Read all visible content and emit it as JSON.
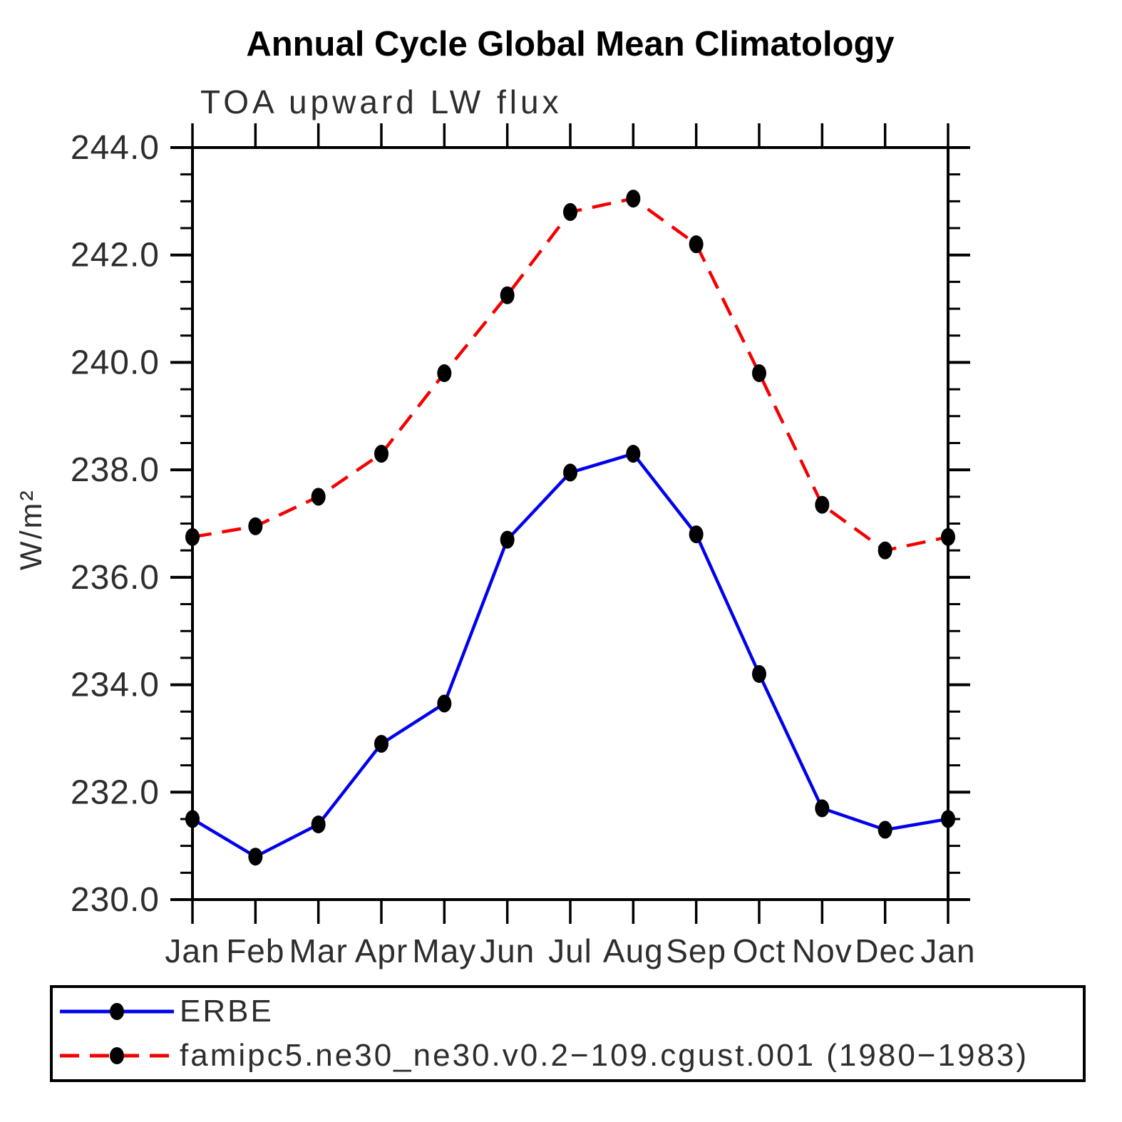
{
  "chart_data": {
    "type": "line",
    "title": "Annual Cycle Global Mean Climatology",
    "subtitle": "TOA upward LW flux",
    "ylabel": "W/m²",
    "xlabel": "",
    "categories": [
      "Jan",
      "Feb",
      "Mar",
      "Apr",
      "May",
      "Jun",
      "Jul",
      "Aug",
      "Sep",
      "Oct",
      "Nov",
      "Dec",
      "Jan"
    ],
    "series": [
      {
        "name": "ERBE",
        "color": "#0000ee",
        "line_style": "solid",
        "values": [
          231.5,
          230.8,
          231.4,
          232.9,
          233.65,
          236.7,
          237.95,
          238.3,
          236.8,
          234.2,
          231.7,
          231.3,
          231.5
        ]
      },
      {
        "name": "famipc5.ne30_ne30.v0.2−109.cgust.001 (1980−1983)",
        "color": "#f40000",
        "line_style": "dashed",
        "values": [
          236.75,
          236.95,
          237.5,
          238.3,
          239.8,
          241.25,
          242.8,
          243.05,
          242.2,
          239.8,
          237.35,
          236.5,
          236.75
        ]
      }
    ],
    "ylim": [
      230.0,
      244.0
    ],
    "ytick_major": 2.0,
    "ytick_minor": 0.5,
    "ytick_labels": [
      "230.0",
      "232.0",
      "234.0",
      "236.0",
      "238.0",
      "240.0",
      "242.0",
      "244.0"
    ],
    "marker": {
      "shape": "filled-ellipse",
      "color": "#000000"
    },
    "grid": "off",
    "legend_position": "bottom",
    "axis_color": "#000000"
  }
}
